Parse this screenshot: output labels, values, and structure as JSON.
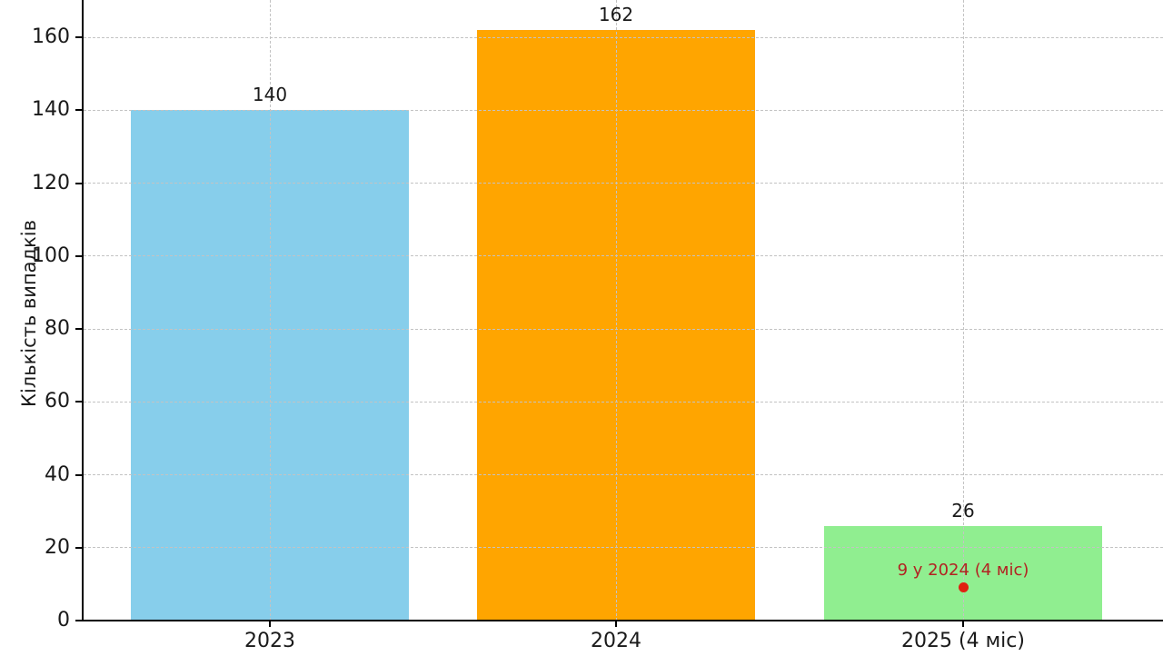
{
  "figure": {
    "background": "#ffffff",
    "axis_color": "#000000",
    "grid_color": "#c3c3c3",
    "text_color": "#1a1a1a"
  },
  "chart_data": {
    "type": "bar",
    "title": "",
    "categories": [
      "2023",
      "2024",
      "2025 (4 міс)"
    ],
    "values": [
      140,
      162,
      26
    ],
    "bar_colors": [
      "#87CEEB",
      "#FFA500",
      "#90EE90"
    ],
    "ylabel": "Кількість випадків",
    "xlabel": "",
    "ylim": [
      0,
      170
    ],
    "yticks": [
      0,
      20,
      40,
      60,
      80,
      100,
      120,
      140,
      160
    ],
    "grid": "dashed, horizontal at y-ticks and vertical at bar centers, drawn over bars",
    "legend": "none",
    "annotation": {
      "text": "9 у 2024 (4 міс)",
      "category_index": 2,
      "value": 9,
      "text_color": "#B22222",
      "dot_color": "#E02010"
    }
  }
}
